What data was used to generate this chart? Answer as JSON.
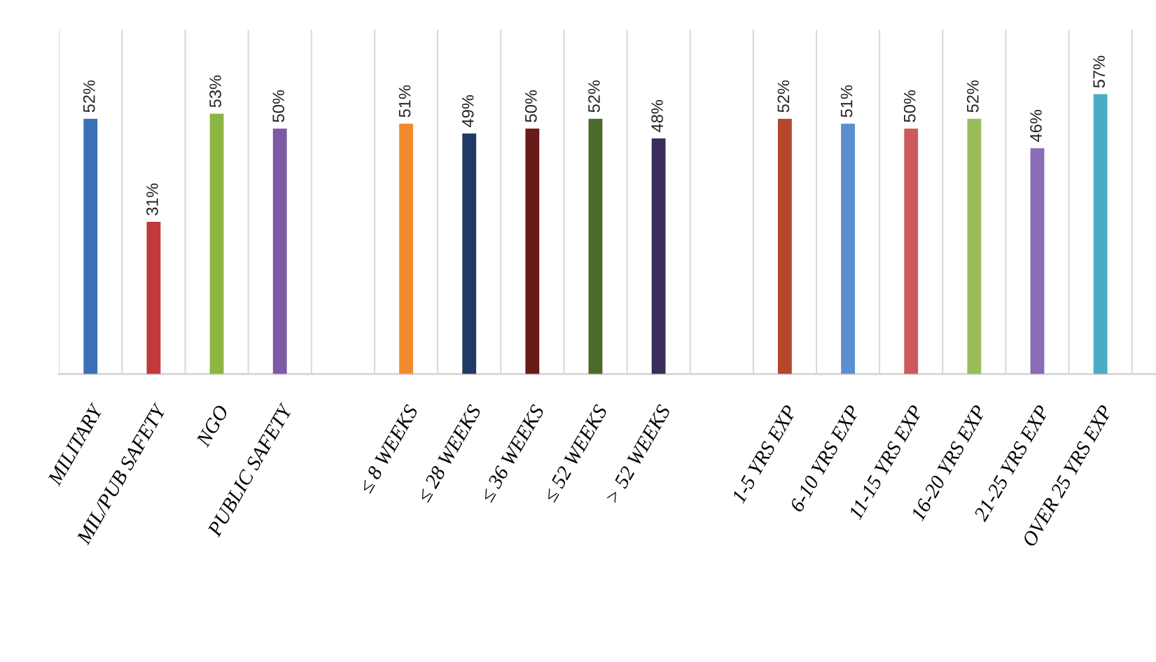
{
  "chart_data": {
    "type": "bar",
    "categories": [
      "MILITARY",
      "MIL/PUB SAFETY",
      "NGO",
      "PUBLIC SAFETY",
      null,
      "≤ 8 WEEKS",
      "≤ 28 WEEKS",
      "≤ 36 WEEKS",
      "≤ 52 WEEKS",
      "> 52 WEEKS",
      null,
      "1-5 YRS EXP",
      "6-10 YRS EXP",
      "11-15 YRS EXP",
      "16-20 YRS EXP",
      "21-25 YRS EXP",
      "OVER 25 YRS EXP"
    ],
    "values": [
      52,
      31,
      53,
      50,
      null,
      51,
      49,
      50,
      52,
      48,
      null,
      52,
      51,
      50,
      52,
      46,
      57
    ],
    "value_labels": [
      "52%",
      "31%",
      "53%",
      "50%",
      null,
      "51%",
      "49%",
      "50%",
      "52%",
      "48%",
      null,
      "52%",
      "51%",
      "50%",
      "52%",
      "46%",
      "57%"
    ],
    "colors": [
      "#3b70b8",
      "#c0393b",
      "#8db542",
      "#7b5aa6",
      null,
      "#f08a2e",
      "#1f3a64",
      "#6b1a1a",
      "#4a6a2a",
      "#3b2d5a",
      null,
      "#b5472a",
      "#5b8fd0",
      "#cc5a5a",
      "#9bbb5a",
      "#8a6db5",
      "#4bacc6"
    ],
    "grid": "x"
  }
}
